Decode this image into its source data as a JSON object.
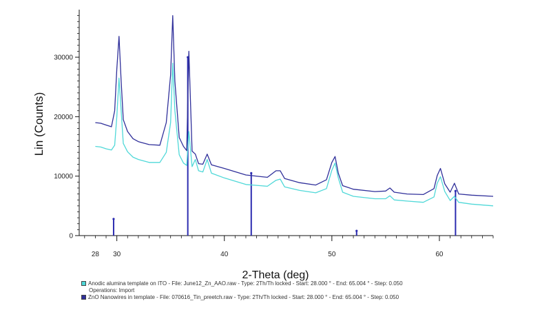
{
  "colors": {
    "background": "#ffffff",
    "axis": "#111111",
    "series_cyan": "#4fd8d8",
    "series_navy": "#2f2f9a",
    "reference_lines": "#2b2bb0"
  },
  "chart_data": {
    "type": "line",
    "title": "",
    "xlabel": "2-Theta (deg)",
    "ylabel": "Lin (Counts)",
    "xlim": [
      26.5,
      65
    ],
    "ylim": [
      0,
      38000
    ],
    "xticks": [
      28,
      30,
      40,
      50,
      60
    ],
    "xtick_labels": [
      "28",
      "30",
      "40",
      "50",
      "60"
    ],
    "yticks": [
      0,
      10000,
      20000,
      30000
    ],
    "ytick_labels": [
      "0",
      "10000",
      "20000",
      "30000"
    ],
    "grid": false,
    "series": [
      {
        "name": "Anodic alumina template on ITO - File: June12_Zn_AAO.raw - Type: 2Th/Th locked - Start: 28.000 ° - End: 65.004 ° - Step: 0.050",
        "operations": "Operations: Import",
        "color": "#4fd8d8",
        "x": [
          28.0,
          28.5,
          29.0,
          29.5,
          29.8,
          30.0,
          30.2,
          30.4,
          30.6,
          31.0,
          31.5,
          32.0,
          33.0,
          34.0,
          34.6,
          35.0,
          35.2,
          35.4,
          35.8,
          36.2,
          36.5,
          36.7,
          37.0,
          37.3,
          37.6,
          38.0,
          38.4,
          38.8,
          40.0,
          42.0,
          44.0,
          44.8,
          45.2,
          45.6,
          47.0,
          48.5,
          49.5,
          50.0,
          50.3,
          50.6,
          51.0,
          52.0,
          54.0,
          55.0,
          55.4,
          55.8,
          57.0,
          58.5,
          59.5,
          59.8,
          60.1,
          60.5,
          61.0,
          61.4,
          61.8,
          63.0,
          65.0
        ],
        "y": [
          15000,
          14900,
          14600,
          14400,
          15200,
          20000,
          26500,
          21000,
          15500,
          14100,
          13200,
          12800,
          12300,
          12300,
          14000,
          19000,
          29000,
          21000,
          13600,
          12200,
          11800,
          17500,
          11600,
          12800,
          10900,
          10700,
          12800,
          10500,
          9700,
          8600,
          8300,
          9300,
          9500,
          8200,
          7600,
          7200,
          7900,
          11000,
          12200,
          9700,
          7300,
          6600,
          6200,
          6200,
          6700,
          6000,
          5800,
          5600,
          6500,
          8800,
          9900,
          7400,
          5900,
          6600,
          5600,
          5300,
          5000
        ]
      },
      {
        "name": "ZnO Nanowires in template - File: 070616_Tin_preetch.raw - Type: 2Th/Th locked - Start: 28.000 ° - End: 65.004 ° - Step: 0.050",
        "color": "#2f2f9a",
        "x": [
          28.0,
          28.5,
          29.0,
          29.5,
          29.8,
          30.0,
          30.2,
          30.4,
          30.6,
          31.0,
          31.5,
          32.0,
          33.0,
          34.0,
          34.6,
          35.0,
          35.2,
          35.4,
          35.8,
          36.2,
          36.5,
          36.7,
          37.0,
          37.3,
          37.6,
          38.0,
          38.4,
          38.8,
          40.0,
          42.0,
          44.0,
          44.8,
          45.2,
          45.6,
          47.0,
          48.5,
          49.5,
          50.0,
          50.3,
          50.6,
          51.0,
          52.0,
          54.0,
          55.0,
          55.4,
          55.8,
          57.0,
          58.5,
          59.5,
          59.8,
          60.1,
          60.5,
          61.0,
          61.4,
          61.8,
          63.0,
          65.0
        ],
        "y": [
          19000,
          18900,
          18600,
          18300,
          21000,
          28000,
          33500,
          26000,
          19500,
          17500,
          16300,
          15800,
          15300,
          15200,
          19000,
          27000,
          37000,
          26000,
          16500,
          15000,
          14300,
          31000,
          14200,
          13700,
          12100,
          12000,
          13700,
          11900,
          11300,
          10200,
          9800,
          10900,
          10900,
          9600,
          8900,
          8500,
          9400,
          12300,
          13300,
          10500,
          8400,
          7800,
          7400,
          7500,
          8000,
          7300,
          7000,
          6900,
          7900,
          10100,
          11300,
          8700,
          7300,
          8800,
          7000,
          6800,
          6600
        ]
      }
    ],
    "reference_lines": {
      "color": "#2b2bb0",
      "x": [
        29.7,
        36.6,
        42.5,
        52.3,
        61.5
      ],
      "y": [
        2800,
        30000,
        10500,
        800,
        7500
      ]
    },
    "legend": {
      "position": "bottom-left",
      "operations": "Operations: Import"
    }
  }
}
